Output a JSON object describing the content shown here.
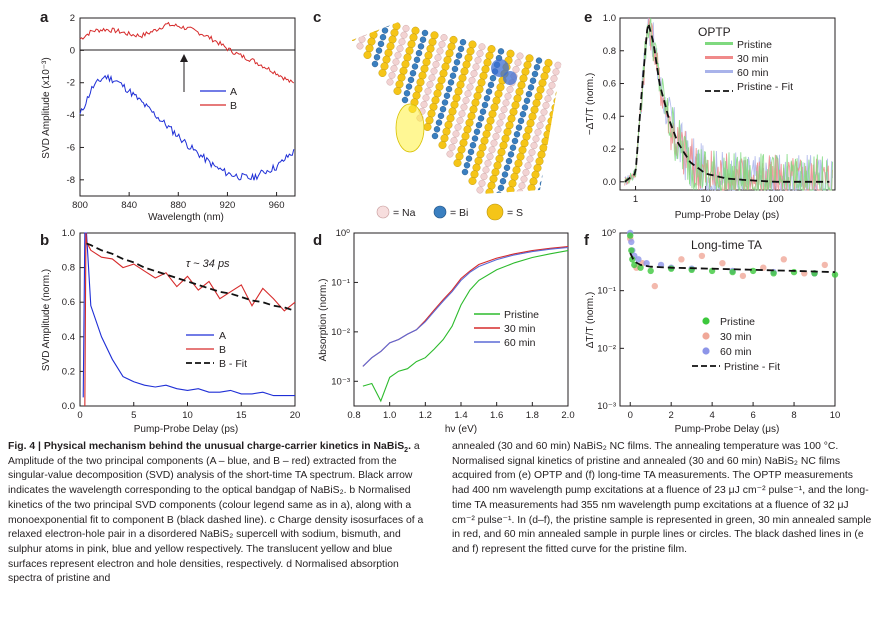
{
  "panels": {
    "a": {
      "letter": "a",
      "xlabel": "Wavelength (nm)",
      "ylabel": "SVD Amplitude (x10⁻³)",
      "xticks": [
        "800",
        "840",
        "880",
        "920",
        "960"
      ],
      "yticks": [
        "2",
        "0",
        "-2",
        "-4",
        "-6",
        "-8"
      ],
      "legend": [
        {
          "name": "A",
          "color": "#1f2fd6"
        },
        {
          "name": "B",
          "color": "#d62b2b"
        }
      ]
    },
    "b": {
      "letter": "b",
      "xlabel": "Pump-Probe Delay (ps)",
      "ylabel": "SVD Amplitude (norm.)",
      "xticks": [
        "0",
        "5",
        "10",
        "15",
        "20"
      ],
      "yticks": [
        "1.0",
        "0.8",
        "0.6",
        "0.4",
        "0.2",
        "0.0"
      ],
      "annotation": "τ ~ 34 ps",
      "legend": [
        {
          "name": "A",
          "color": "#1f2fd6"
        },
        {
          "name": "B",
          "color": "#d62b2b"
        },
        {
          "name": "B - Fit",
          "color": "#111111"
        }
      ]
    },
    "c": {
      "letter": "c",
      "legend": [
        {
          "name": "= Na",
          "color": "#f2d3d3"
        },
        {
          "name": "= Bi",
          "color": "#3a7fc0"
        },
        {
          "name": "= S",
          "color": "#f5c518"
        }
      ]
    },
    "d": {
      "letter": "d",
      "xlabel": "hν (eV)",
      "ylabel": "Absorption (norm.)",
      "xticks": [
        "0.8",
        "1.0",
        "1.2",
        "1.4",
        "1.6",
        "1.8",
        "2.0"
      ],
      "yticks": [
        "10⁰",
        "10⁻¹",
        "10⁻²",
        "10⁻³"
      ],
      "legend": [
        {
          "name": "Pristine",
          "color": "#2dbb2d"
        },
        {
          "name": "30 min",
          "color": "#d62b2b"
        },
        {
          "name": "60 min",
          "color": "#5b6ad6"
        }
      ]
    },
    "e": {
      "letter": "e",
      "title": "OPTP",
      "xlabel": "Pump-Probe Delay (ps)",
      "ylabel": "−ΔT/T (norm.)",
      "xticks": [
        "1",
        "10",
        "100"
      ],
      "yticks": [
        "1.0",
        "0.8",
        "0.6",
        "0.4",
        "0.2",
        "0.0"
      ],
      "legend": [
        {
          "name": "Pristine",
          "color": "#7fd97f"
        },
        {
          "name": "30 min",
          "color": "#f08a8a"
        },
        {
          "name": "60 min",
          "color": "#a9b3ea"
        },
        {
          "name": "Pristine - Fit",
          "color": "#111111"
        }
      ]
    },
    "f": {
      "letter": "f",
      "title": "Long-time TA",
      "xlabel": "Pump-Probe Delay (μs)",
      "ylabel": "ΔT/T (norm.)",
      "xticks": [
        "0",
        "2",
        "4",
        "6",
        "8",
        "10"
      ],
      "yticks": [
        "10⁰",
        "10⁻¹",
        "10⁻²",
        "10⁻³"
      ],
      "legend": [
        {
          "name": "Pristine",
          "color": "#3cc83c"
        },
        {
          "name": "30 min",
          "color": "#f0a898"
        },
        {
          "name": "60 min",
          "color": "#8d95e8"
        },
        {
          "name": "Pristine - Fit",
          "color": "#111111"
        }
      ]
    }
  },
  "caption": {
    "fig_label": "Fig. 4 | Physical mechanism behind the unusual charge-carrier kinetics in NaBiS",
    "fig_label_sub": "2",
    "fig_label_end": ".",
    "left_text": "a Amplitude of the two principal components (A – blue, and B – red) extracted from the singular-value decomposition (SVD) analysis of the short-time TA spectrum. Black arrow indicates the wavelength corresponding to the optical bandgap of NaBiS₂. b Normalised kinetics of the two principal SVD components (colour legend same as in a), along with a monoexponential fit to component B (black dashed line). c Charge density isosurfaces of a relaxed electron-hole pair in a disordered NaBiS₂ supercell with sodium, bismuth, and sulphur atoms in pink, blue and yellow respectively. The translucent yellow and blue surfaces represent electron and hole densities, respectively. d Normalised absorption spectra of pristine and",
    "right_text": "annealed (30 and 60 min) NaBiS₂ NC films. The annealing temperature was 100 °C. Normalised signal kinetics of pristine and annealed (30 and 60 min) NaBiS₂ NC films acquired from (e) OPTP and (f) long-time TA measurements. The OPTP measurements had 400 nm wavelength pump excitations at a fluence of 23 μJ cm⁻² pulse⁻¹, and the long-time TA measurements had 355 nm wavelength pump excitations at a fluence of 32 μJ cm⁻² pulse⁻¹. In (d–f), the pristine sample is represented in green, 30 min annealed sample in red, and 60 min annealed sample in purple lines or circles. The black dashed lines in (e and f) represent the fitted curve for the pristine film."
  },
  "chart_data": [
    {
      "type": "line",
      "panel": "a",
      "xlabel": "Wavelength (nm)",
      "ylabel": "SVD Amplitude (x10⁻³)",
      "xlim": [
        800,
        975
      ],
      "ylim": [
        -9,
        2
      ],
      "x": [
        800,
        810,
        820,
        830,
        840,
        850,
        860,
        870,
        880,
        890,
        900,
        910,
        920,
        930,
        940,
        950,
        960,
        970,
        975
      ],
      "series": [
        {
          "name": "A",
          "values": [
            -4.0,
            -2.3,
            -1.6,
            -1.9,
            -2.5,
            -3.2,
            -3.9,
            -4.6,
            -5.3,
            -6.0,
            -6.6,
            -7.2,
            -7.6,
            -7.8,
            -7.9,
            -7.5,
            -7.2,
            -6.5,
            -6.2
          ]
        },
        {
          "name": "B",
          "values": [
            0.7,
            1.2,
            1.3,
            1.2,
            1.0,
            0.9,
            1.2,
            1.6,
            1.5,
            1.3,
            1.0,
            0.6,
            0.1,
            -0.3,
            -0.6,
            -1.0,
            -1.4,
            -1.9,
            -2.1
          ]
        }
      ],
      "arrow_x": 888
    },
    {
      "type": "line",
      "panel": "b",
      "xlabel": "Pump-Probe Delay (ps)",
      "ylabel": "SVD Amplitude (norm.)",
      "xlim": [
        0,
        20
      ],
      "ylim": [
        0,
        1.0
      ],
      "x": [
        0.6,
        1,
        2,
        3,
        4,
        5,
        6,
        7,
        8,
        9,
        10,
        11,
        12,
        13,
        14,
        15,
        16,
        17,
        18,
        19,
        20
      ],
      "series": [
        {
          "name": "A",
          "values": [
            1.0,
            0.58,
            0.4,
            0.27,
            0.17,
            0.14,
            0.12,
            0.11,
            0.12,
            0.1,
            0.09,
            0.1,
            0.08,
            0.08,
            0.09,
            0.07,
            0.07,
            0.08,
            0.06,
            0.06,
            0.06
          ]
        },
        {
          "name": "B",
          "values": [
            0.95,
            0.9,
            0.86,
            0.85,
            0.8,
            0.82,
            0.78,
            0.74,
            0.77,
            0.69,
            0.75,
            0.67,
            0.72,
            0.62,
            0.66,
            0.7,
            0.58,
            0.68,
            0.62,
            0.55,
            0.6
          ]
        },
        {
          "name": "B - Fit",
          "values": [
            0.94,
            0.93,
            0.9,
            0.88,
            0.85,
            0.83,
            0.8,
            0.78,
            0.76,
            0.74,
            0.72,
            0.7,
            0.68,
            0.66,
            0.65,
            0.63,
            0.61,
            0.6,
            0.58,
            0.57,
            0.55
          ]
        }
      ]
    },
    {
      "type": "line",
      "panel": "d",
      "xlabel": "hν (eV)",
      "ylabel": "Absorption (norm.)",
      "xlim": [
        0.8,
        2.0
      ],
      "ylim_log10": [
        -3.5,
        0
      ],
      "x": [
        0.85,
        0.9,
        0.95,
        1.0,
        1.05,
        1.1,
        1.15,
        1.2,
        1.25,
        1.3,
        1.35,
        1.4,
        1.45,
        1.5,
        1.6,
        1.7,
        1.8,
        1.9,
        2.0
      ],
      "series": [
        {
          "name": "Pristine",
          "values": [
            0.0008,
            0.0009,
            0.0004,
            0.0012,
            0.0016,
            0.0018,
            0.0025,
            0.003,
            0.0045,
            0.007,
            0.013,
            0.035,
            0.07,
            0.11,
            0.18,
            0.25,
            0.32,
            0.38,
            0.44
          ]
        },
        {
          "name": "30 min",
          "values": [
            0.002,
            0.003,
            0.004,
            0.006,
            0.007,
            0.009,
            0.011,
            0.017,
            0.028,
            0.045,
            0.07,
            0.12,
            0.17,
            0.23,
            0.31,
            0.38,
            0.44,
            0.49,
            0.53
          ]
        },
        {
          "name": "60 min",
          "values": [
            0.002,
            0.003,
            0.004,
            0.006,
            0.007,
            0.009,
            0.011,
            0.016,
            0.026,
            0.042,
            0.065,
            0.11,
            0.16,
            0.21,
            0.29,
            0.36,
            0.42,
            0.47,
            0.51
          ]
        }
      ]
    },
    {
      "type": "line",
      "panel": "e",
      "title": "OPTP",
      "xlabel": "Pump-Probe Delay (ps)",
      "ylabel": "−ΔT/T (norm.)",
      "xlim": [
        0.6,
        700
      ],
      "xscale": "log",
      "ylim": [
        -0.05,
        1.0
      ],
      "x": [
        0.7,
        1.0,
        1.2,
        1.5,
        1.8,
        2.2,
        3,
        4,
        6,
        10,
        20,
        40,
        100,
        300,
        600
      ],
      "series": [
        {
          "name": "Pristine - Fit",
          "values": [
            0.0,
            0.05,
            0.5,
            0.98,
            0.85,
            0.6,
            0.38,
            0.24,
            0.12,
            0.05,
            0.02,
            0.01,
            0.0,
            0.0,
            0.0
          ]
        }
      ]
    },
    {
      "type": "scatter",
      "panel": "f",
      "title": "Long-time TA",
      "xlabel": "Pump-Probe Delay (μs)",
      "ylabel": "ΔT/T (norm.)",
      "xlim": [
        -0.5,
        10
      ],
      "ylim_log10": [
        -3,
        0
      ],
      "series": [
        {
          "name": "Pristine",
          "x": [
            0,
            0.05,
            0.1,
            0.2,
            0.5,
            1,
            2,
            3,
            4,
            5,
            6,
            7,
            8,
            9,
            10
          ],
          "values": [
            0.9,
            0.5,
            0.35,
            0.28,
            0.25,
            0.22,
            0.24,
            0.23,
            0.22,
            0.21,
            0.22,
            0.2,
            0.21,
            0.2,
            0.19
          ]
        },
        {
          "name": "30 min",
          "x": [
            0,
            0.3,
            0.6,
            1.2,
            2.5,
            3.5,
            4.5,
            5.5,
            6.5,
            7.5,
            8.5,
            9.5
          ],
          "values": [
            0.8,
            0.25,
            0.3,
            0.12,
            0.35,
            0.4,
            0.3,
            0.18,
            0.25,
            0.35,
            0.2,
            0.28
          ]
        },
        {
          "name": "60 min",
          "x": [
            0,
            0.05,
            0.1,
            0.2,
            0.4,
            0.8,
            1.5,
            2,
            3,
            5,
            7,
            9
          ],
          "values": [
            1.0,
            0.7,
            0.5,
            0.4,
            0.35,
            0.3,
            0.28,
            0.25,
            0.24,
            0.22,
            0.21,
            0.2
          ]
        },
        {
          "name": "Pristine - Fit",
          "x": [
            0,
            0.2,
            0.5,
            1,
            2,
            4,
            6,
            8,
            10
          ],
          "values": [
            0.45,
            0.32,
            0.28,
            0.26,
            0.25,
            0.24,
            0.23,
            0.22,
            0.21
          ]
        }
      ]
    }
  ]
}
